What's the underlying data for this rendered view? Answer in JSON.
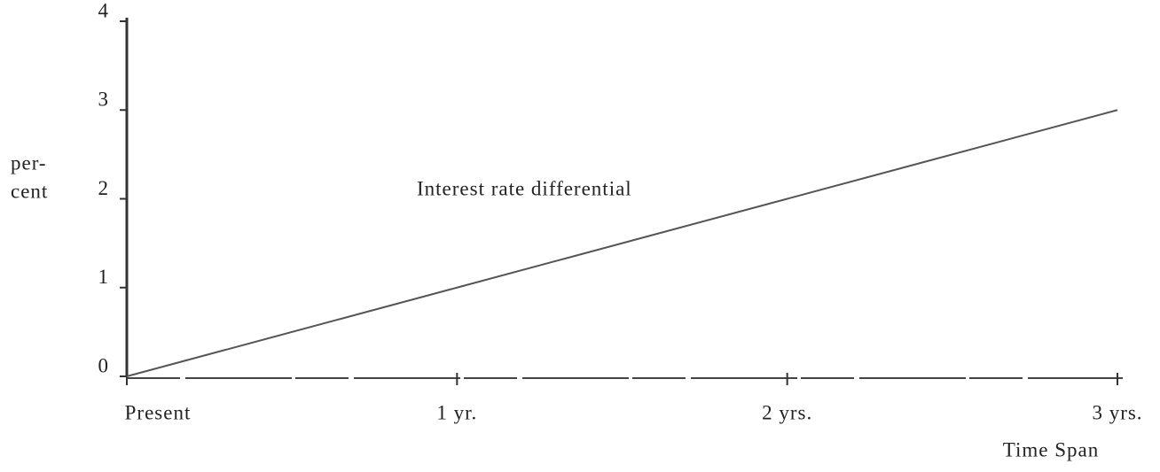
{
  "chart_data": {
    "type": "line",
    "x": [
      0,
      1,
      2,
      3
    ],
    "series": [
      {
        "name": "Interest rate differential",
        "color": "#555555",
        "values": [
          0,
          1,
          2,
          3
        ]
      }
    ],
    "xlim": [
      0,
      3
    ],
    "xticks": [
      {
        "value": 0,
        "label": "Present"
      },
      {
        "value": 1,
        "label": "1 yr."
      },
      {
        "value": 2,
        "label": "2 yrs."
      },
      {
        "value": 3,
        "label": "3 yrs."
      }
    ],
    "ylim": [
      0,
      4
    ],
    "yticks": [
      0,
      1,
      2,
      3,
      4
    ],
    "xlabel": "Time Span",
    "ylabel": [
      "per-",
      "cent"
    ],
    "grid": false
  }
}
